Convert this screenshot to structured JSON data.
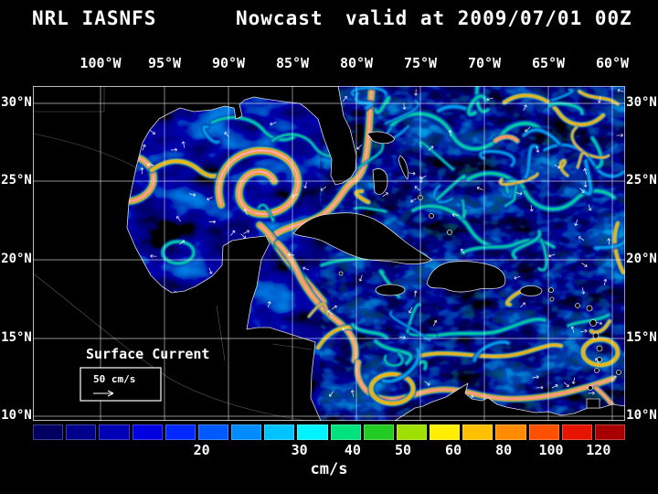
{
  "title": {
    "product": "NRL IASNFS",
    "mode": "Nowcast",
    "valid": "valid at 2009/07/01 00Z"
  },
  "axes": {
    "lon_labels": [
      "100°W",
      "95°W",
      "90°W",
      "85°W",
      "80°W",
      "75°W",
      "70°W",
      "65°W",
      "60°W"
    ],
    "lat_labels": [
      "30°N",
      "25°N",
      "20°N",
      "15°N",
      "10°N"
    ]
  },
  "map": {
    "annotation": "Surface Current",
    "scale_label": "50 cm/s"
  },
  "colorbar": {
    "units_label": "cm/s",
    "tick_labels": [
      "20",
      "30",
      "40",
      "50",
      "60",
      "80",
      "100",
      "120"
    ],
    "segments": [
      "#000060",
      "#00008c",
      "#0000b4",
      "#0000e0",
      "#0028ff",
      "#005aff",
      "#008cff",
      "#00c3ff",
      "#00f3ff",
      "#00e27d",
      "#22cc22",
      "#a0e000",
      "#ffee00",
      "#ffc000",
      "#ff8c00",
      "#ff5000",
      "#e61400",
      "#a80000"
    ]
  },
  "chart_data": {
    "type": "heatmap",
    "title": "NRL IASNFS Nowcast valid at 2009/07/01 00Z",
    "variable": "ocean surface current speed",
    "units": "cm/s",
    "region": {
      "lon_range": [
        "100°W",
        "60°W"
      ],
      "lat_range": [
        "10°N",
        "30°N"
      ],
      "grid_spacing_deg": 5
    },
    "colorbar_values": [
      20,
      30,
      40,
      50,
      60,
      80,
      100,
      120
    ],
    "legend": {
      "reference_vector": "50 cm/s"
    }
  }
}
